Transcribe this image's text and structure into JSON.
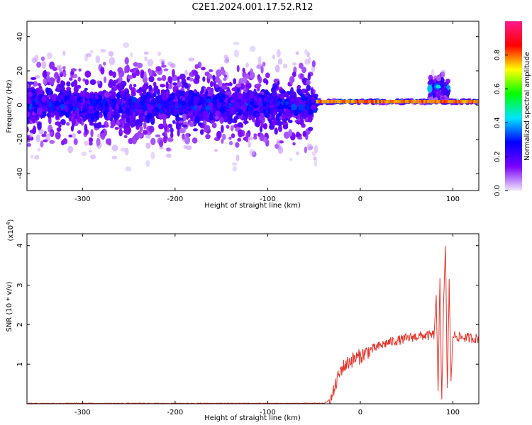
{
  "title": "C2E1.2024.001.17.52.R12",
  "chart_data": [
    {
      "type": "heatmap",
      "xlabel": "Height of straight line (km)",
      "ylabel": "Frequency (Hz)",
      "xlim": [
        -360,
        128
      ],
      "ylim": [
        -50,
        49
      ],
      "xticks": [
        -300,
        -200,
        -100,
        0,
        100
      ],
      "xtick_labels": [
        "-300",
        "-200",
        "-100",
        "0",
        "100"
      ],
      "yticks": [
        -40,
        -20,
        0,
        20,
        40
      ],
      "ytick_labels": [
        "-40",
        "-20",
        "0",
        "20",
        "40"
      ],
      "grid": false,
      "colorbar": {
        "label": "Normalized spectral amplitude",
        "range": [
          0.0,
          1.0
        ],
        "ticks": [
          0.0,
          0.2,
          0.4,
          0.6,
          0.8
        ],
        "tick_labels": [
          "0.0",
          "0.2",
          "0.4",
          "0.6",
          "0.8"
        ],
        "colormap": [
          "#f0e6fa",
          "#7a00ff",
          "#0000ff",
          "#00e5ff",
          "#00ff00",
          "#ffff00",
          "#ff0000",
          "#ff1a8c"
        ]
      },
      "regions": [
        {
          "x": [
            -360,
            -47
          ],
          "freq_center": 0,
          "freq_spread": 49,
          "max_amplitude": 0.35,
          "description_level": "broadband noise"
        },
        {
          "x": [
            -47,
            128
          ],
          "freq_center": 2,
          "freq_spread": 2,
          "max_amplitude": 0.8
        },
        {
          "x": [
            75,
            95
          ],
          "freq_center": 10,
          "freq_spread": 12,
          "max_amplitude": 0.5
        }
      ]
    },
    {
      "type": "line",
      "xlabel": "Height of straight line (km)",
      "ylabel": "SNR (10 * v/v)",
      "ylabel_multiplier": "(x10",
      "ylabel_exponent": "4",
      "ylabel_close": ")",
      "xlim": [
        -360,
        128
      ],
      "ylim": [
        0,
        4.3
      ],
      "xticks": [
        -300,
        -200,
        -100,
        0,
        100
      ],
      "xtick_labels": [
        "-300",
        "-200",
        "-100",
        "0",
        "100"
      ],
      "yticks": [
        1,
        2,
        3,
        4
      ],
      "ytick_labels": [
        "1",
        "2",
        "3",
        "4"
      ],
      "grid": false,
      "color": "#e8352a",
      "series": [
        {
          "x": [
            -360,
            -100,
            -40,
            -35,
            -30,
            -25,
            -20,
            -15,
            -10,
            -5,
            0,
            10,
            20,
            30,
            40,
            50,
            55,
            60,
            70,
            75,
            80,
            82,
            84,
            86,
            88,
            90,
            92,
            94,
            96,
            98,
            100,
            105,
            110,
            120,
            128
          ],
          "y": [
            0.0,
            0.0,
            0.0,
            0.05,
            0.2,
            0.6,
            0.9,
            1.0,
            1.1,
            1.15,
            1.2,
            1.35,
            1.45,
            1.55,
            1.6,
            1.65,
            1.68,
            1.7,
            1.72,
            1.73,
            1.75,
            2.8,
            0.2,
            3.2,
            0.1,
            2.5,
            4.0,
            0.3,
            3.1,
            0.5,
            1.75,
            1.7,
            1.68,
            1.66,
            1.65
          ]
        }
      ]
    }
  ]
}
